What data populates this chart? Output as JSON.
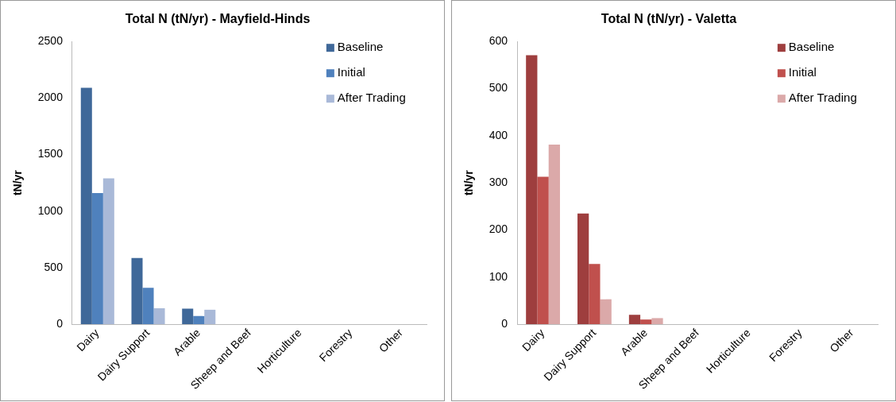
{
  "chart_data": [
    {
      "type": "bar",
      "title": "Total N (tN/yr) - Mayfield-Hinds",
      "ylabel": "tN/yr",
      "categories": [
        "Dairy",
        "Dairy Support",
        "Arable",
        "Sheep and Beef",
        "Horticulture",
        "Forestry",
        "Other"
      ],
      "ylim": [
        0,
        2500
      ],
      "yticks": [
        0,
        500,
        1000,
        1500,
        2000,
        2500
      ],
      "grid": false,
      "legend": "top right",
      "series": [
        {
          "name": "Baseline",
          "color": "#3f6899",
          "values": [
            2090,
            585,
            137,
            0,
            0,
            0,
            0
          ]
        },
        {
          "name": "Initial",
          "color": "#4f81bd",
          "values": [
            1160,
            323,
            72,
            0,
            0,
            0,
            0
          ]
        },
        {
          "name": "After Trading",
          "color": "#a9b9d8",
          "values": [
            1290,
            142,
            128,
            0,
            0,
            0,
            0
          ]
        }
      ]
    },
    {
      "type": "bar",
      "title": "Total N (tN/yr) - Valetta",
      "ylabel": "tN/yr",
      "categories": [
        "Dairy",
        "Dairy Support",
        "Arable",
        "Sheep and Beef",
        "Horticulture",
        "Forestry",
        "Other"
      ],
      "ylim": [
        0,
        600
      ],
      "yticks": [
        0,
        100,
        200,
        300,
        400,
        500,
        600
      ],
      "grid": false,
      "legend": "top right",
      "series": [
        {
          "name": "Baseline",
          "color": "#9e3e3e",
          "values": [
            571,
            235,
            20,
            0,
            0,
            0,
            0
          ]
        },
        {
          "name": "Initial",
          "color": "#c0504d",
          "values": [
            313,
            128,
            10,
            0,
            0,
            0,
            0
          ]
        },
        {
          "name": "After Trading",
          "color": "#dba9a9",
          "values": [
            381,
            53,
            13,
            0,
            0,
            0,
            0
          ]
        }
      ]
    }
  ]
}
